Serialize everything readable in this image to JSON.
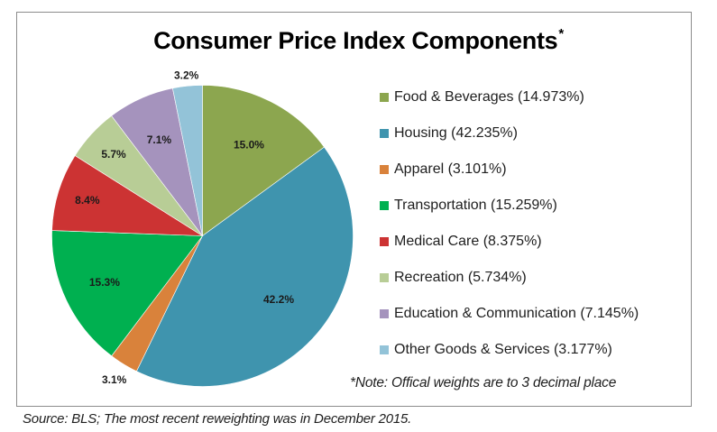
{
  "chart_data": {
    "type": "pie",
    "title": "Consumer Price Index Components",
    "title_marker": "*",
    "start_angle": "12 o'clock, clockwise",
    "legend_position": "right",
    "slices": [
      {
        "name": "Food & Beverages",
        "value": 14.973,
        "label": "15.0%",
        "legend": "Food & Beverages (14.973%)",
        "color": "#8CA64F"
      },
      {
        "name": "Housing",
        "value": 42.235,
        "label": "42.2%",
        "legend": "Housing (42.235%)",
        "color": "#3F94AE"
      },
      {
        "name": "Apparel",
        "value": 3.101,
        "label": "3.1%",
        "legend": "Apparel (3.101%)",
        "color": "#D9823B"
      },
      {
        "name": "Transportation",
        "value": 15.259,
        "label": "15.3%",
        "legend": "Transportation (15.259%)",
        "color": "#00B050"
      },
      {
        "name": "Medical Care",
        "value": 8.375,
        "label": "8.4%",
        "legend": "Medical Care (8.375%)",
        "color": "#CC3333"
      },
      {
        "name": "Recreation",
        "value": 5.734,
        "label": "5.7%",
        "legend": "Recreation (5.734%)",
        "color": "#B8CD96"
      },
      {
        "name": "Education & Communication",
        "value": 7.145,
        "label": "7.1%",
        "legend": "Education & Communication (7.145%)",
        "color": "#A593BD"
      },
      {
        "name": "Other Goods & Services",
        "value": 3.177,
        "label": "3.2%",
        "legend": "Other Goods & Services (3.177%)",
        "color": "#93C3D8"
      }
    ],
    "note": "*Note: Offical weights are to 3 decimal place",
    "source": "Source: BLS; The most recent reweighting was in December 2015."
  }
}
